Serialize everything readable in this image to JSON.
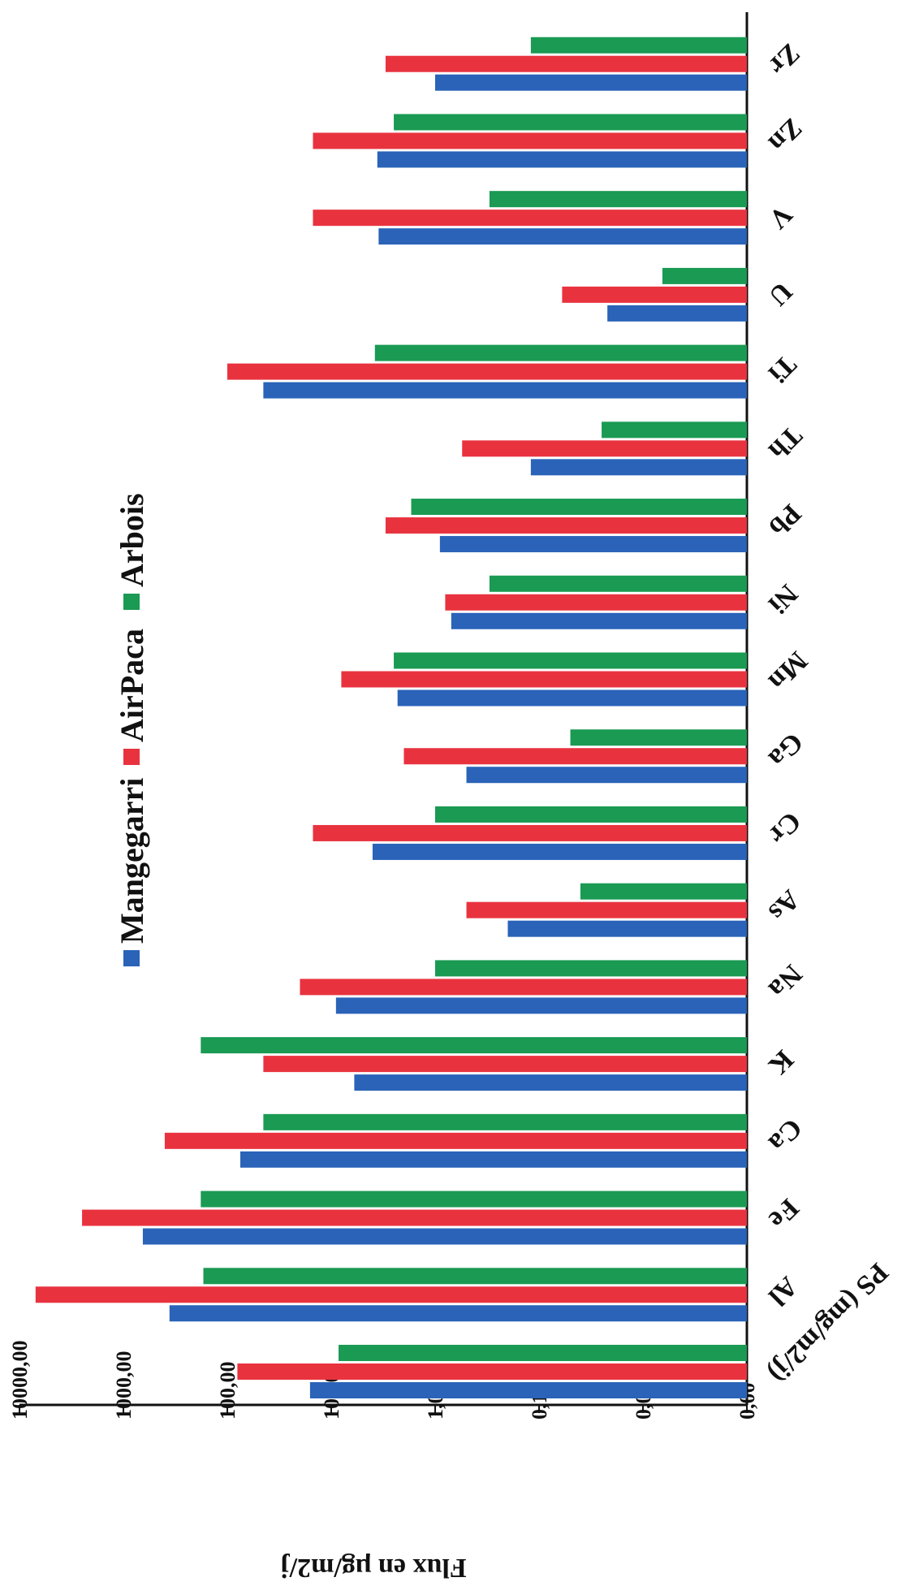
{
  "chart_data": {
    "type": "bar",
    "orientation": "horizontal",
    "title": "",
    "ylabel": "Flux en µg/m2/j",
    "xlabel": "",
    "scale": "log",
    "ylim": [
      0.001,
      10000
    ],
    "tick_labels": [
      "0,00",
      "0,01",
      "0,10",
      "1,00",
      "10,00",
      "100,00",
      "1000,00",
      "10000,00"
    ],
    "categories": [
      "PS (mg/m2/j)",
      "Al",
      "Fe",
      "Ca",
      "K",
      "Na",
      "As",
      "Cr",
      "Ga",
      "Mn",
      "Ni",
      "Pb",
      "Th",
      "Ti",
      "U",
      "V",
      "Zn",
      "Zr"
    ],
    "series": [
      {
        "name": "Mangegarri",
        "color": "#2a63b8",
        "values": [
          16,
          360,
          650,
          75,
          6,
          9,
          0.2,
          4,
          0.5,
          2.3,
          0.7,
          0.9,
          0.12,
          45,
          0.022,
          3.5,
          3.6,
          1
        ]
      },
      {
        "name": "AirPaca",
        "color": "#e8333f",
        "values": [
          80,
          7000,
          2500,
          400,
          45,
          20,
          0.5,
          15,
          2,
          8,
          0.8,
          3,
          0.55,
          100,
          0.06,
          15,
          15,
          3
        ]
      },
      {
        "name": "Arbois",
        "color": "#1a9a52",
        "values": [
          8.5,
          170,
          180,
          45,
          180,
          1,
          0.04,
          1,
          0.05,
          2.5,
          0.3,
          1.7,
          0.025,
          3.8,
          0.0065,
          0.3,
          2.5,
          0.12
        ]
      }
    ],
    "legend": {
      "position": "top-center"
    },
    "grid": false
  }
}
